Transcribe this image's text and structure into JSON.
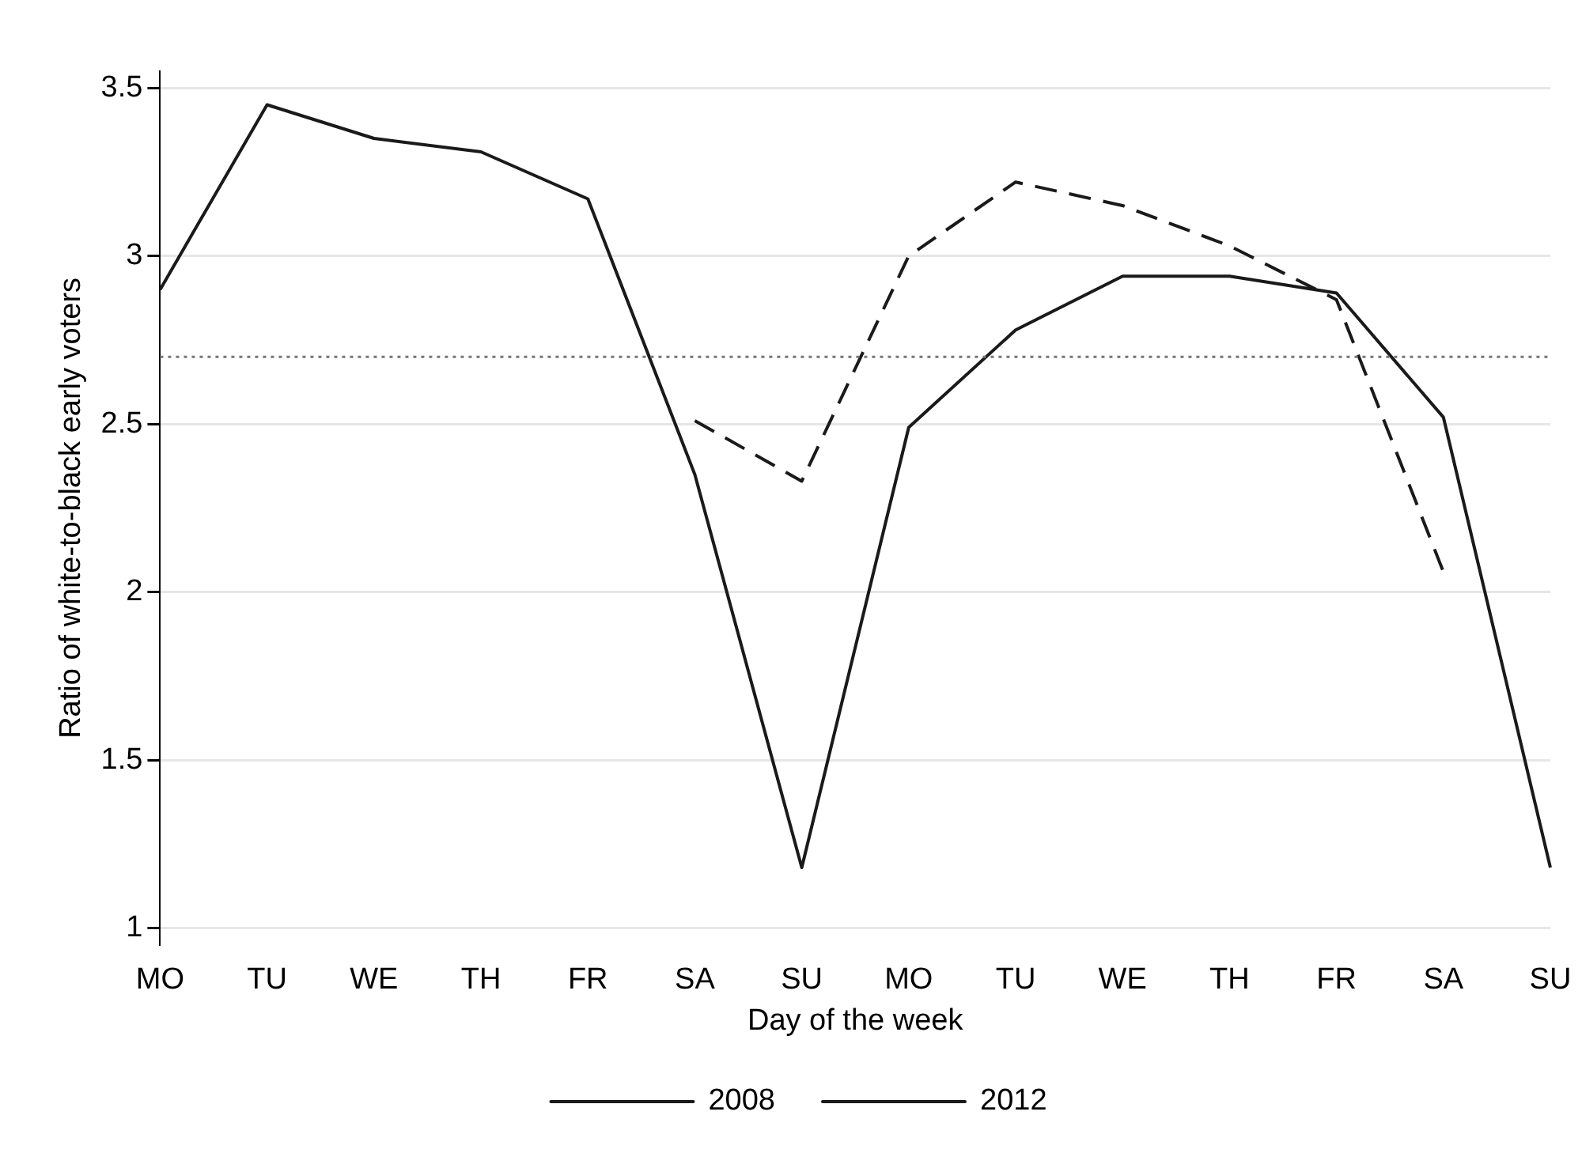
{
  "chart_data": {
    "type": "line",
    "xlabel": "Day of the week",
    "ylabel": "Ratio of white-to-black early voters",
    "categories": [
      "MO",
      "TU",
      "WE",
      "TH",
      "FR",
      "SA",
      "SU",
      "MO",
      "TU",
      "WE",
      "TH",
      "FR",
      "SA",
      "SU"
    ],
    "series": [
      {
        "name": "2008",
        "color": "#1a1a1a",
        "line_style": "solid",
        "values": [
          2.9,
          3.45,
          3.35,
          3.31,
          3.17,
          2.35,
          1.18,
          2.49,
          2.78,
          2.94,
          2.94,
          2.89,
          2.52,
          1.18
        ]
      },
      {
        "name": "2012",
        "color": "#1a1a1a",
        "line_style": "dashed",
        "values": [
          null,
          null,
          null,
          null,
          null,
          2.51,
          2.33,
          3.0,
          3.22,
          3.15,
          3.03,
          2.87,
          2.06,
          null
        ]
      }
    ],
    "ylim": [
      0.95,
      3.55
    ],
    "yticks": [
      1,
      1.5,
      2,
      2.5,
      3,
      3.5
    ],
    "grid": "y",
    "legend": "bottom",
    "marker": "none",
    "ref_lines": [
      {
        "axis": "y",
        "value": 2.7,
        "color": "#777777",
        "line_style": "dotted"
      }
    ]
  }
}
